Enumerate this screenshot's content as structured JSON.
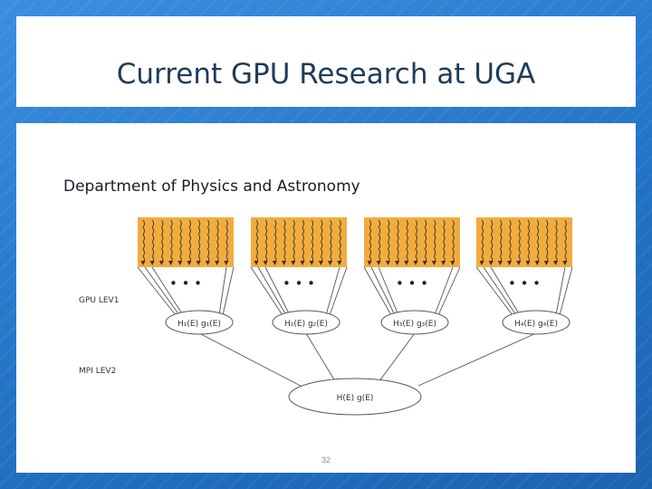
{
  "slide": {
    "title": "Current GPU Research at UGA",
    "subtitle": "Department of Physics and Astronomy",
    "page_number": "32"
  },
  "diagram": {
    "level_labels": [
      {
        "text": "GPU   LEV1"
      },
      {
        "text": "MPI   LEV2"
      }
    ],
    "gpu_nodes": [
      {
        "label": "H₁(E)  g₁(E)"
      },
      {
        "label": "H₂(E)  g₂(E)"
      },
      {
        "label": "H₃(E)  g₃(E)"
      },
      {
        "label": "H₄(E)  g₄(E)"
      }
    ],
    "root_node": {
      "label": "H(E)     g(E)"
    },
    "ellipsis": "• • •",
    "colors": {
      "block": "#f2ac3e",
      "stroke": "#555555"
    }
  }
}
